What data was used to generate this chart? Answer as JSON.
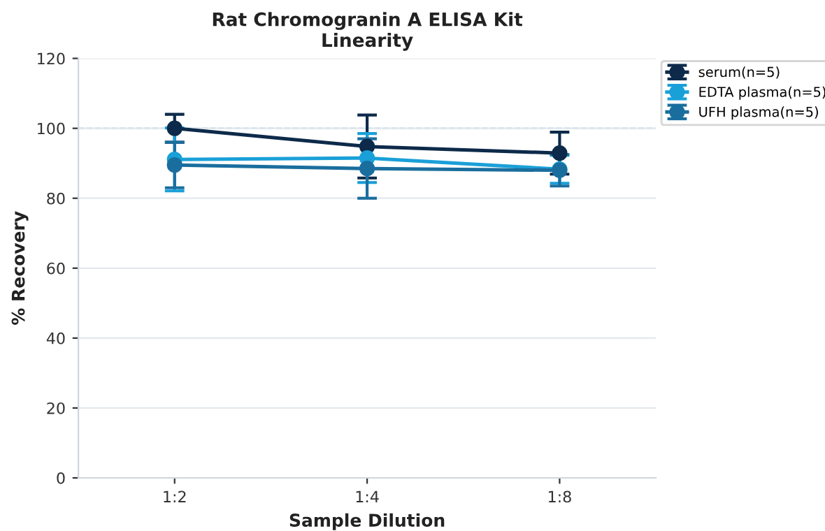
{
  "chart_data": {
    "type": "line",
    "title": "Rat Chromogranin A ELISA Kit\nLinearity",
    "xlabel": "Sample Dilution",
    "ylabel": "% Recovery",
    "categories": [
      "1:2",
      "1:4",
      "1:8"
    ],
    "series": [
      {
        "name": "serum(n=5)",
        "color": "#0d2a4a",
        "values": [
          100,
          94.8,
          92.9
        ],
        "errors": [
          4,
          9,
          6
        ]
      },
      {
        "name": "EDTA plasma(n=5)",
        "color": "#1aa0d8",
        "values": [
          91.1,
          91.5,
          88.3
        ],
        "errors": [
          9,
          7,
          4
        ]
      },
      {
        "name": "UFH plasma(n=5)",
        "color": "#1a6e9e",
        "values": [
          89.5,
          88.5,
          88
        ],
        "errors": [
          6.5,
          8.5,
          4.5
        ]
      }
    ],
    "ylim": [
      0,
      120
    ],
    "yticks": [
      0,
      20,
      40,
      60,
      80,
      100,
      120
    ],
    "grid": "y",
    "legend": "top right",
    "marker": "circle",
    "line_style": "solid",
    "ref_lines": [
      {
        "axis": "y",
        "value": 100,
        "color": "#7ec8e3",
        "line_style": "dashed"
      }
    ]
  }
}
